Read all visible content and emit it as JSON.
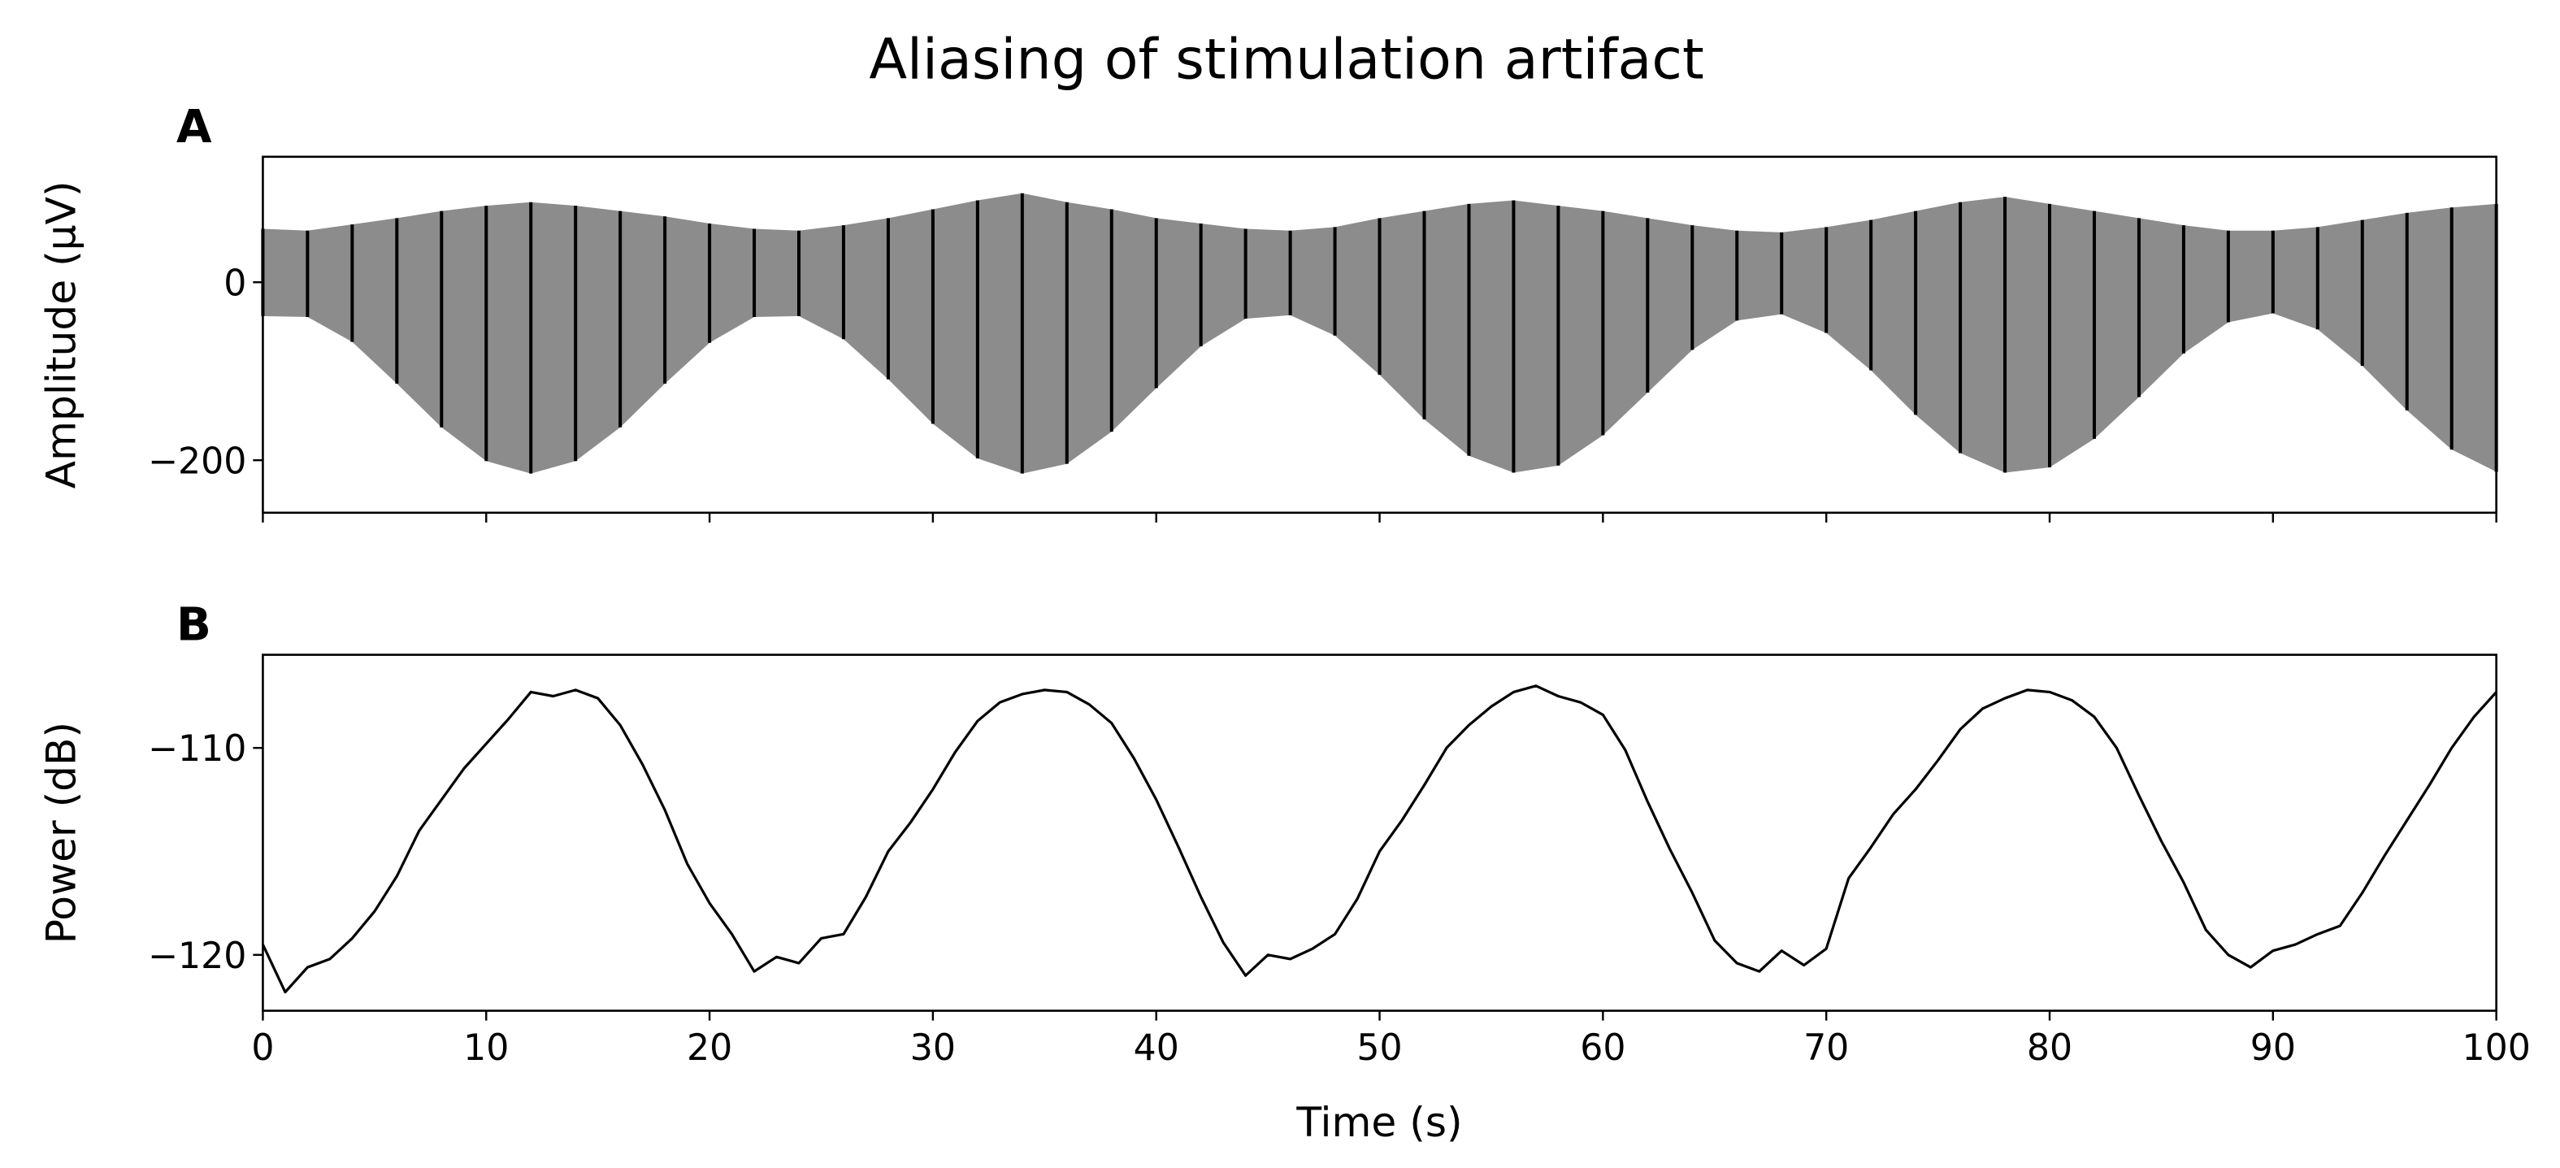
{
  "title": "Aliasing of stimulation artifact",
  "chart_data": [
    {
      "type": "band",
      "panel_label": "A",
      "y_label": "Amplitude (μV)",
      "color": "#000000",
      "xlim": [
        0,
        100
      ],
      "xticks": [
        0,
        10,
        20,
        30,
        40,
        50,
        60,
        70,
        80,
        90,
        100
      ],
      "ylim": [
        -259,
        141
      ],
      "yticks": [
        {
          "value": -200,
          "label": "−200"
        },
        0
      ],
      "x": [
        0,
        2,
        4,
        6,
        8,
        10,
        12,
        14,
        16,
        18,
        20,
        22,
        24,
        26,
        28,
        30,
        32,
        34,
        36,
        38,
        40,
        42,
        44,
        46,
        48,
        50,
        52,
        54,
        56,
        58,
        60,
        62,
        64,
        66,
        68,
        70,
        72,
        74,
        76,
        78,
        80,
        82,
        84,
        86,
        88,
        90,
        92,
        94,
        96,
        98,
        100
      ],
      "upper": [
        60,
        58,
        65,
        72,
        80,
        86,
        90,
        86,
        80,
        74,
        66,
        60,
        58,
        64,
        72,
        82,
        92,
        100,
        90,
        82,
        72,
        66,
        60,
        58,
        62,
        72,
        80,
        88,
        92,
        86,
        80,
        72,
        64,
        58,
        56,
        62,
        70,
        80,
        90,
        96,
        88,
        80,
        72,
        64,
        58,
        58,
        62,
        70,
        78,
        84,
        88
      ],
      "lower": [
        -38,
        -39,
        -67,
        -114,
        -163,
        -201,
        -215,
        -201,
        -163,
        -114,
        -68,
        -39,
        -38,
        -64,
        -109,
        -159,
        -198,
        -215,
        -204,
        -168,
        -119,
        -72,
        -41,
        -37,
        -60,
        -104,
        -154,
        -195,
        -214,
        -206,
        -172,
        -124,
        -76,
        -43,
        -36,
        -57,
        -99,
        -149,
        -192,
        -214,
        -208,
        -176,
        -129,
        -80,
        -45,
        -35,
        -53,
        -94,
        -144,
        -188,
        -213
      ]
    },
    {
      "type": "line",
      "panel_label": "B",
      "y_label": "Power (dB)",
      "x_label": "Time (s)",
      "color": "#000000",
      "xlim": [
        0,
        100
      ],
      "xticks": [
        0,
        10,
        20,
        30,
        40,
        50,
        60,
        70,
        80,
        90,
        100
      ],
      "ylim": [
        -122.7,
        -105.5
      ],
      "yticks": [
        {
          "value": -110,
          "label": "−110"
        },
        {
          "value": -120,
          "label": "−120"
        }
      ],
      "x": [
        0,
        1,
        2,
        3,
        4,
        5,
        6,
        7,
        8,
        9,
        10,
        11,
        12,
        13,
        14,
        15,
        16,
        17,
        18,
        19,
        20,
        21,
        22,
        23,
        24,
        25,
        26,
        27,
        28,
        29,
        30,
        31,
        32,
        33,
        34,
        35,
        36,
        37,
        38,
        39,
        40,
        41,
        42,
        43,
        44,
        45,
        46,
        47,
        48,
        49,
        50,
        51,
        52,
        53,
        54,
        55,
        56,
        57,
        58,
        59,
        60,
        61,
        62,
        63,
        64,
        65,
        66,
        67,
        68,
        69,
        70,
        71,
        72,
        73,
        74,
        75,
        76,
        77,
        78,
        79,
        80,
        81,
        82,
        83,
        84,
        85,
        86,
        87,
        88,
        89,
        90,
        91,
        92,
        93,
        94,
        95,
        96,
        97,
        98,
        99,
        100
      ],
      "values": [
        -119.5,
        -121.8,
        -120.6,
        -120.2,
        -119.2,
        -117.9,
        -116.2,
        -114.0,
        -112.5,
        -111.0,
        -109.8,
        -108.6,
        -107.3,
        -107.5,
        -107.2,
        -107.6,
        -108.9,
        -110.8,
        -113.0,
        -115.6,
        -117.5,
        -119.0,
        -120.8,
        -120.1,
        -120.4,
        -119.2,
        -119.0,
        -117.2,
        -115.0,
        -113.6,
        -112.0,
        -110.2,
        -108.7,
        -107.8,
        -107.4,
        -107.2,
        -107.3,
        -107.9,
        -108.8,
        -110.5,
        -112.5,
        -114.8,
        -117.2,
        -119.4,
        -121.0,
        -120.0,
        -120.2,
        -119.7,
        -119.0,
        -117.3,
        -115.0,
        -113.5,
        -111.8,
        -110.0,
        -108.9,
        -108.0,
        -107.3,
        -107.0,
        -107.5,
        -107.8,
        -108.4,
        -110.1,
        -112.6,
        -114.9,
        -117.0,
        -119.3,
        -120.4,
        -120.8,
        -119.8,
        -120.5,
        -119.7,
        -116.3,
        -114.8,
        -113.2,
        -112.0,
        -110.6,
        -109.1,
        -108.1,
        -107.6,
        -107.2,
        -107.3,
        -107.7,
        -108.5,
        -110.0,
        -112.3,
        -114.5,
        -116.5,
        -118.8,
        -120.0,
        -120.6,
        -119.8,
        -119.5,
        -119.0,
        -118.6,
        -117.0,
        -115.2,
        -113.5,
        -111.8,
        -110.0,
        -108.5,
        -107.3
      ]
    }
  ]
}
